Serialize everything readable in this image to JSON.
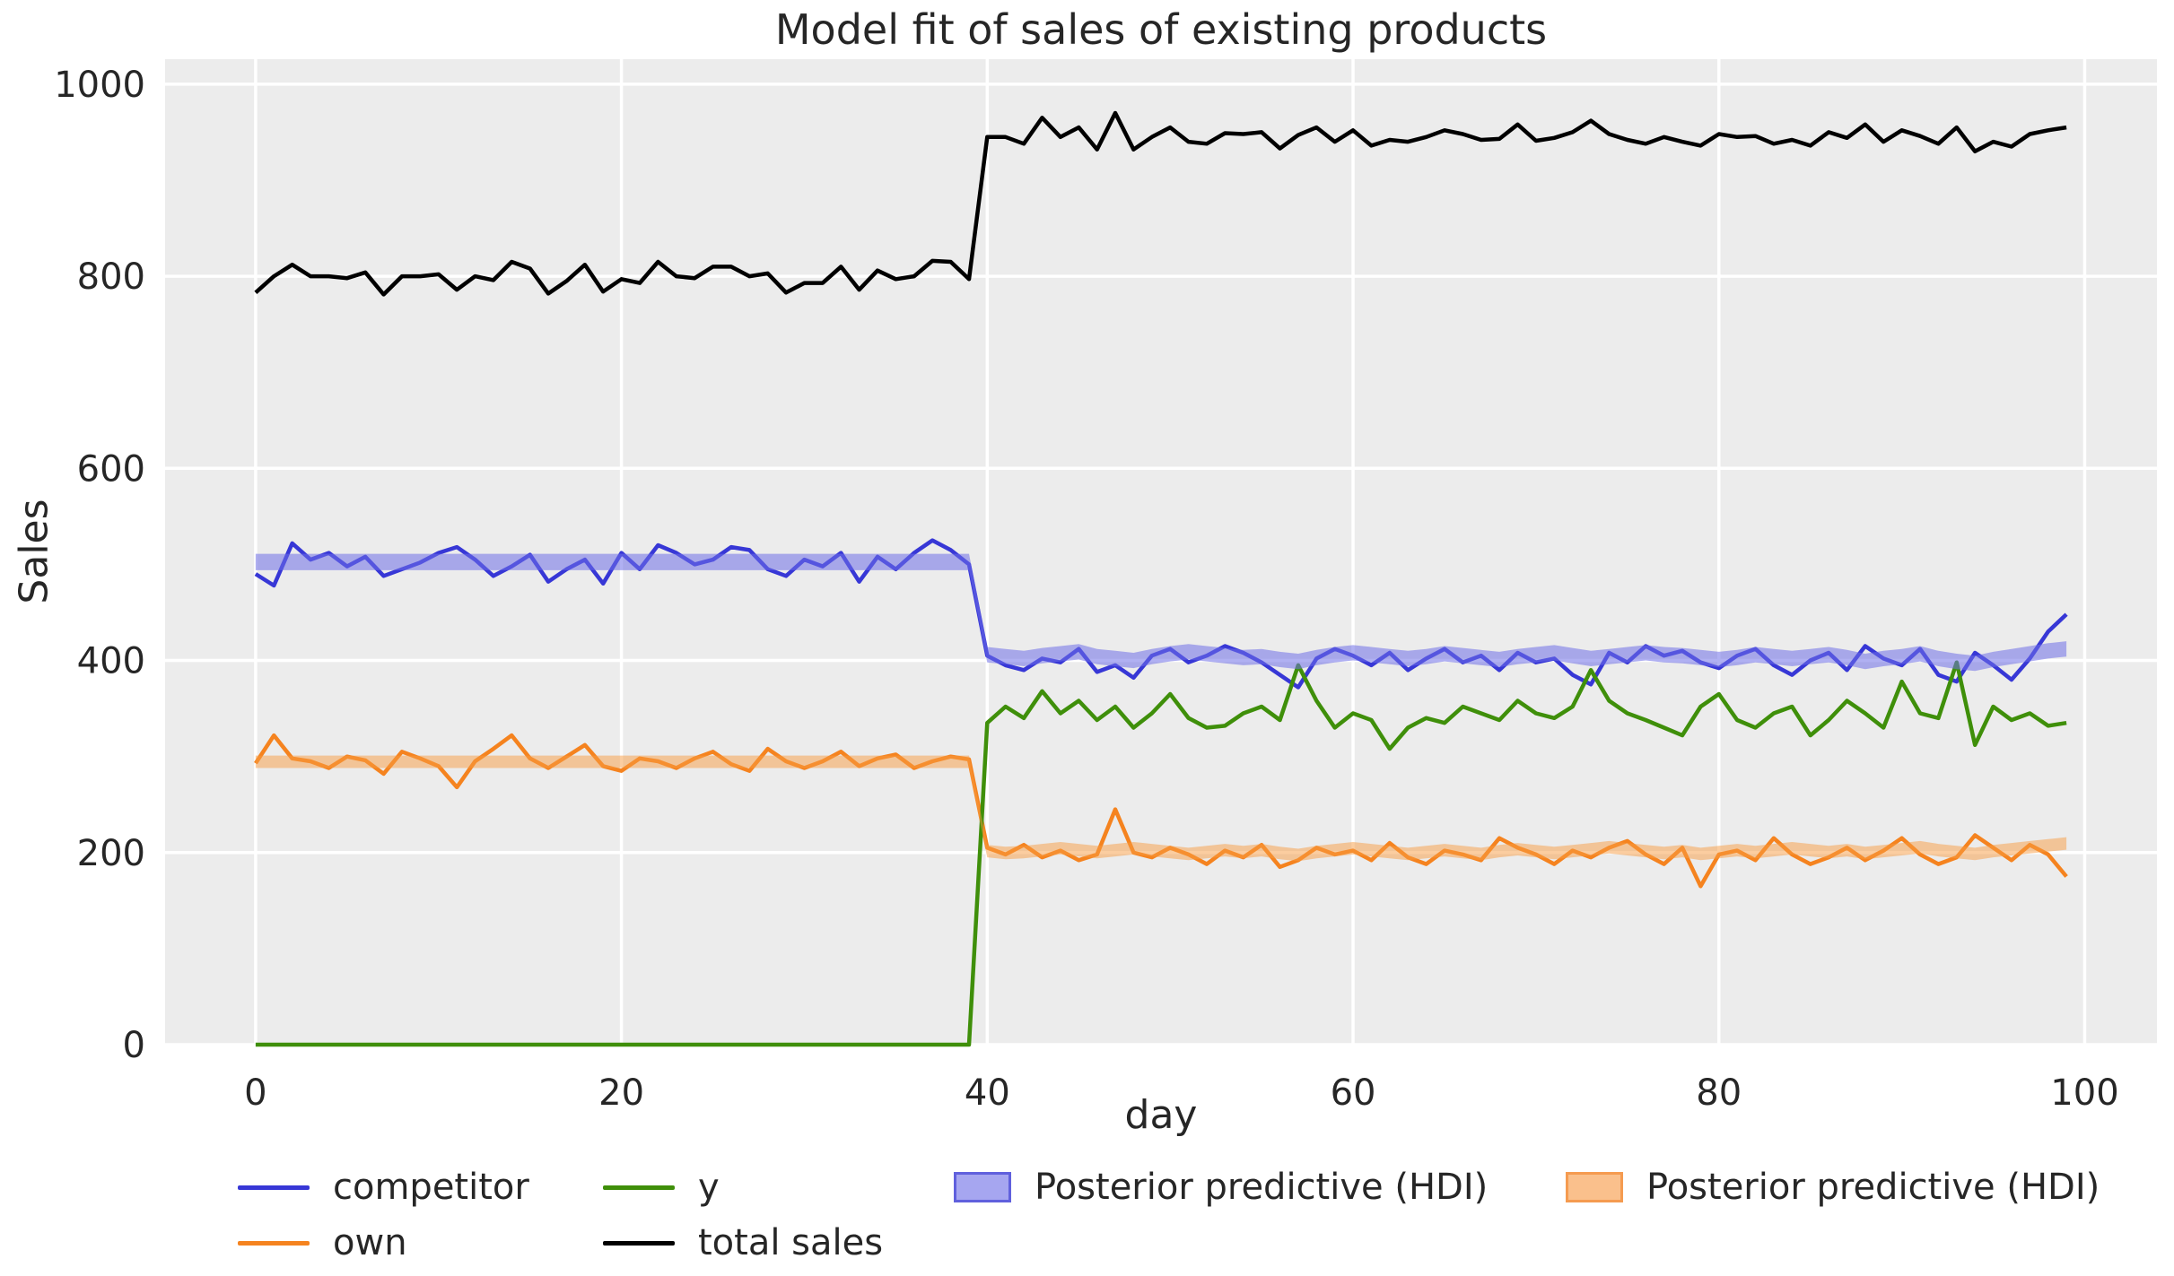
{
  "chart_data": {
    "type": "line",
    "title": "Model fit of sales of existing products",
    "xlabel": "day",
    "ylabel": "Sales",
    "xlim": [
      -4.95,
      103.95
    ],
    "ylim": [
      0,
      1026
    ],
    "xticks": [
      0,
      20,
      40,
      60,
      80,
      100
    ],
    "yticks": [
      0,
      200,
      400,
      600,
      800,
      1000
    ],
    "grid": true,
    "legend_position": "below",
    "colors": {
      "plot_background": "#ececec",
      "grid": "#ffffff",
      "text": "#262626",
      "competitor": "#3737d6",
      "own": "#f5831f",
      "y": "#3f8f0a",
      "total_sales": "#000000",
      "hdi_blue": "#7070e8",
      "hdi_orange": "#f79b42"
    },
    "x": [
      0,
      1,
      2,
      3,
      4,
      5,
      6,
      7,
      8,
      9,
      10,
      11,
      12,
      13,
      14,
      15,
      16,
      17,
      18,
      19,
      20,
      21,
      22,
      23,
      24,
      25,
      26,
      27,
      28,
      29,
      30,
      31,
      32,
      33,
      34,
      35,
      36,
      37,
      38,
      39,
      40,
      41,
      42,
      43,
      44,
      45,
      46,
      47,
      48,
      49,
      50,
      51,
      52,
      53,
      54,
      55,
      56,
      57,
      58,
      59,
      60,
      61,
      62,
      63,
      64,
      65,
      66,
      67,
      68,
      69,
      70,
      71,
      72,
      73,
      74,
      75,
      76,
      77,
      78,
      79,
      80,
      81,
      82,
      83,
      84,
      85,
      86,
      87,
      88,
      89,
      90,
      91,
      92,
      93,
      94,
      95,
      96,
      97,
      98,
      99
    ],
    "series": [
      {
        "name": "competitor",
        "color": "#3737d6",
        "values": [
          490,
          478,
          522,
          505,
          512,
          498,
          508,
          488,
          495,
          502,
          512,
          518,
          505,
          488,
          498,
          510,
          482,
          495,
          505,
          480,
          512,
          495,
          520,
          512,
          500,
          505,
          518,
          515,
          495,
          488,
          505,
          498,
          512,
          482,
          508,
          495,
          512,
          525,
          515,
          500,
          405,
          395,
          390,
          402,
          398,
          412,
          388,
          395,
          382,
          405,
          412,
          398,
          405,
          415,
          408,
          398,
          385,
          372,
          402,
          412,
          405,
          395,
          408,
          390,
          402,
          412,
          398,
          405,
          390,
          408,
          398,
          402,
          385,
          375,
          408,
          398,
          415,
          405,
          410,
          398,
          392,
          405,
          412,
          395,
          385,
          400,
          408,
          390,
          415,
          402,
          395,
          412,
          385,
          378,
          408,
          395,
          380,
          402,
          430,
          448
        ]
      },
      {
        "name": "own",
        "color": "#f5831f",
        "values": [
          293,
          322,
          298,
          295,
          288,
          300,
          296,
          282,
          305,
          298,
          290,
          268,
          295,
          308,
          322,
          298,
          288,
          300,
          312,
          290,
          285,
          298,
          295,
          288,
          298,
          305,
          292,
          285,
          308,
          295,
          288,
          295,
          305,
          290,
          298,
          302,
          288,
          295,
          300,
          297,
          205,
          198,
          208,
          195,
          202,
          192,
          198,
          245,
          200,
          195,
          205,
          198,
          188,
          202,
          195,
          208,
          185,
          192,
          205,
          198,
          202,
          192,
          210,
          195,
          188,
          202,
          198,
          192,
          215,
          205,
          198,
          188,
          202,
          195,
          205,
          212,
          198,
          188,
          205,
          165,
          198,
          202,
          192,
          215,
          198,
          188,
          195,
          205,
          192,
          202,
          215,
          198,
          188,
          195,
          218,
          205,
          192,
          208,
          198,
          175
        ]
      },
      {
        "name": "y",
        "color": "#3f8f0a",
        "values": [
          0,
          0,
          0,
          0,
          0,
          0,
          0,
          0,
          0,
          0,
          0,
          0,
          0,
          0,
          0,
          0,
          0,
          0,
          0,
          0,
          0,
          0,
          0,
          0,
          0,
          0,
          0,
          0,
          0,
          0,
          0,
          0,
          0,
          0,
          0,
          0,
          0,
          0,
          0,
          0,
          335,
          352,
          340,
          368,
          345,
          358,
          338,
          352,
          330,
          345,
          365,
          340,
          330,
          332,
          345,
          352,
          338,
          395,
          358,
          330,
          345,
          338,
          308,
          330,
          340,
          335,
          352,
          345,
          338,
          358,
          345,
          340,
          352,
          390,
          358,
          345,
          338,
          330,
          322,
          352,
          365,
          338,
          330,
          345,
          352,
          322,
          338,
          358,
          345,
          330,
          378,
          345,
          340,
          398,
          312,
          352,
          338,
          345,
          332,
          335
        ]
      },
      {
        "name": "total sales",
        "color": "#000000",
        "values": [
          783,
          800,
          812,
          800,
          800,
          798,
          804,
          781,
          800,
          800,
          802,
          786,
          800,
          796,
          815,
          808,
          782,
          795,
          812,
          784,
          797,
          793,
          815,
          800,
          798,
          810,
          810,
          800,
          803,
          783,
          793,
          793,
          810,
          786,
          806,
          797,
          800,
          816,
          815,
          797,
          945,
          945,
          938,
          965,
          945,
          955,
          932,
          970,
          932,
          945,
          955,
          940,
          938,
          949,
          948,
          950,
          933,
          947,
          955,
          940,
          952,
          936,
          942,
          940,
          945,
          952,
          948,
          942,
          943,
          958,
          941,
          944,
          950,
          962,
          948,
          942,
          938,
          945,
          940,
          936,
          948,
          945,
          946,
          938,
          942,
          936,
          950,
          944,
          958,
          940,
          952,
          946,
          938,
          955,
          930,
          940,
          935,
          948,
          952,
          955
        ]
      }
    ],
    "bands": [
      {
        "name": "Posterior predictive (HDI)",
        "fill": "#7070e8",
        "opacity": 0.55,
        "lower": [
          494,
          494,
          494,
          494,
          494,
          494,
          494,
          494,
          494,
          494,
          494,
          494,
          494,
          494,
          494,
          494,
          494,
          494,
          494,
          494,
          494,
          494,
          494,
          494,
          494,
          494,
          494,
          494,
          494,
          494,
          494,
          494,
          494,
          494,
          494,
          494,
          494,
          494,
          494,
          494,
          398,
          396,
          394,
          397,
          399,
          401,
          396,
          394,
          392,
          396,
          399,
          401,
          399,
          397,
          395,
          396,
          393,
          391,
          395,
          398,
          400,
          398,
          396,
          394,
          396,
          399,
          397,
          395,
          393,
          396,
          398,
          400,
          397,
          394,
          396,
          398,
          400,
          398,
          397,
          395,
          393,
          395,
          398,
          396,
          394,
          396,
          398,
          395,
          391,
          394,
          396,
          399,
          394,
          391,
          389,
          393,
          396,
          399,
          402,
          404
        ],
        "upper": [
          511,
          511,
          511,
          511,
          511,
          511,
          511,
          511,
          511,
          511,
          511,
          511,
          511,
          511,
          511,
          511,
          511,
          511,
          511,
          511,
          511,
          511,
          511,
          511,
          511,
          511,
          511,
          511,
          511,
          511,
          511,
          511,
          511,
          511,
          511,
          511,
          511,
          511,
          511,
          511,
          414,
          412,
          410,
          413,
          415,
          417,
          412,
          410,
          408,
          412,
          415,
          417,
          415,
          413,
          411,
          412,
          409,
          407,
          411,
          414,
          416,
          414,
          412,
          410,
          412,
          415,
          413,
          411,
          409,
          412,
          414,
          416,
          413,
          410,
          412,
          414,
          416,
          414,
          413,
          411,
          409,
          411,
          414,
          412,
          410,
          412,
          414,
          411,
          407,
          410,
          412,
          415,
          410,
          407,
          405,
          409,
          412,
          415,
          418,
          420
        ]
      },
      {
        "name": "Posterior predictive (HDI)",
        "fill": "#f79b42",
        "opacity": 0.5,
        "lower": [
          288,
          288,
          288,
          288,
          288,
          288,
          288,
          288,
          288,
          288,
          288,
          288,
          288,
          288,
          288,
          288,
          288,
          288,
          288,
          288,
          288,
          288,
          288,
          288,
          288,
          288,
          288,
          288,
          288,
          288,
          288,
          288,
          288,
          288,
          288,
          288,
          288,
          288,
          288,
          288,
          195,
          193,
          194,
          196,
          198,
          196,
          194,
          196,
          198,
          196,
          194,
          192,
          194,
          196,
          194,
          196,
          193,
          191,
          194,
          196,
          198,
          196,
          194,
          192,
          194,
          196,
          194,
          192,
          195,
          197,
          195,
          193,
          195,
          197,
          199,
          197,
          195,
          193,
          195,
          192,
          194,
          196,
          194,
          196,
          198,
          196,
          194,
          196,
          193,
          195,
          197,
          199,
          196,
          194,
          192,
          195,
          197,
          199,
          201,
          203
        ],
        "upper": [
          301,
          301,
          301,
          301,
          301,
          301,
          301,
          301,
          301,
          301,
          301,
          301,
          301,
          301,
          301,
          301,
          301,
          301,
          301,
          301,
          301,
          301,
          301,
          301,
          301,
          301,
          301,
          301,
          301,
          301,
          301,
          301,
          301,
          301,
          301,
          301,
          301,
          301,
          301,
          301,
          208,
          206,
          207,
          209,
          211,
          209,
          207,
          209,
          211,
          209,
          207,
          205,
          207,
          209,
          207,
          209,
          206,
          204,
          207,
          209,
          211,
          209,
          207,
          205,
          207,
          209,
          207,
          205,
          208,
          210,
          208,
          206,
          208,
          210,
          212,
          210,
          208,
          206,
          208,
          205,
          207,
          209,
          207,
          209,
          211,
          209,
          207,
          209,
          206,
          208,
          210,
          212,
          209,
          207,
          205,
          208,
          210,
          212,
          214,
          216
        ]
      }
    ]
  },
  "legend": {
    "entries": [
      {
        "label": "competitor",
        "swatch": "line",
        "color": "#3737d6"
      },
      {
        "label": "own",
        "swatch": "line",
        "color": "#f5831f"
      },
      {
        "label": "y",
        "swatch": "line",
        "color": "#3f8f0a"
      },
      {
        "label": "total sales",
        "swatch": "line",
        "color": "#000000"
      },
      {
        "label": "Posterior predictive (HDI)",
        "swatch": "patch",
        "fill": "#a6a6f0",
        "border": "#6060dd"
      },
      {
        "label": "Posterior predictive (HDI)",
        "swatch": "patch",
        "fill": "#fac08c",
        "border": "#f59b50"
      }
    ]
  }
}
